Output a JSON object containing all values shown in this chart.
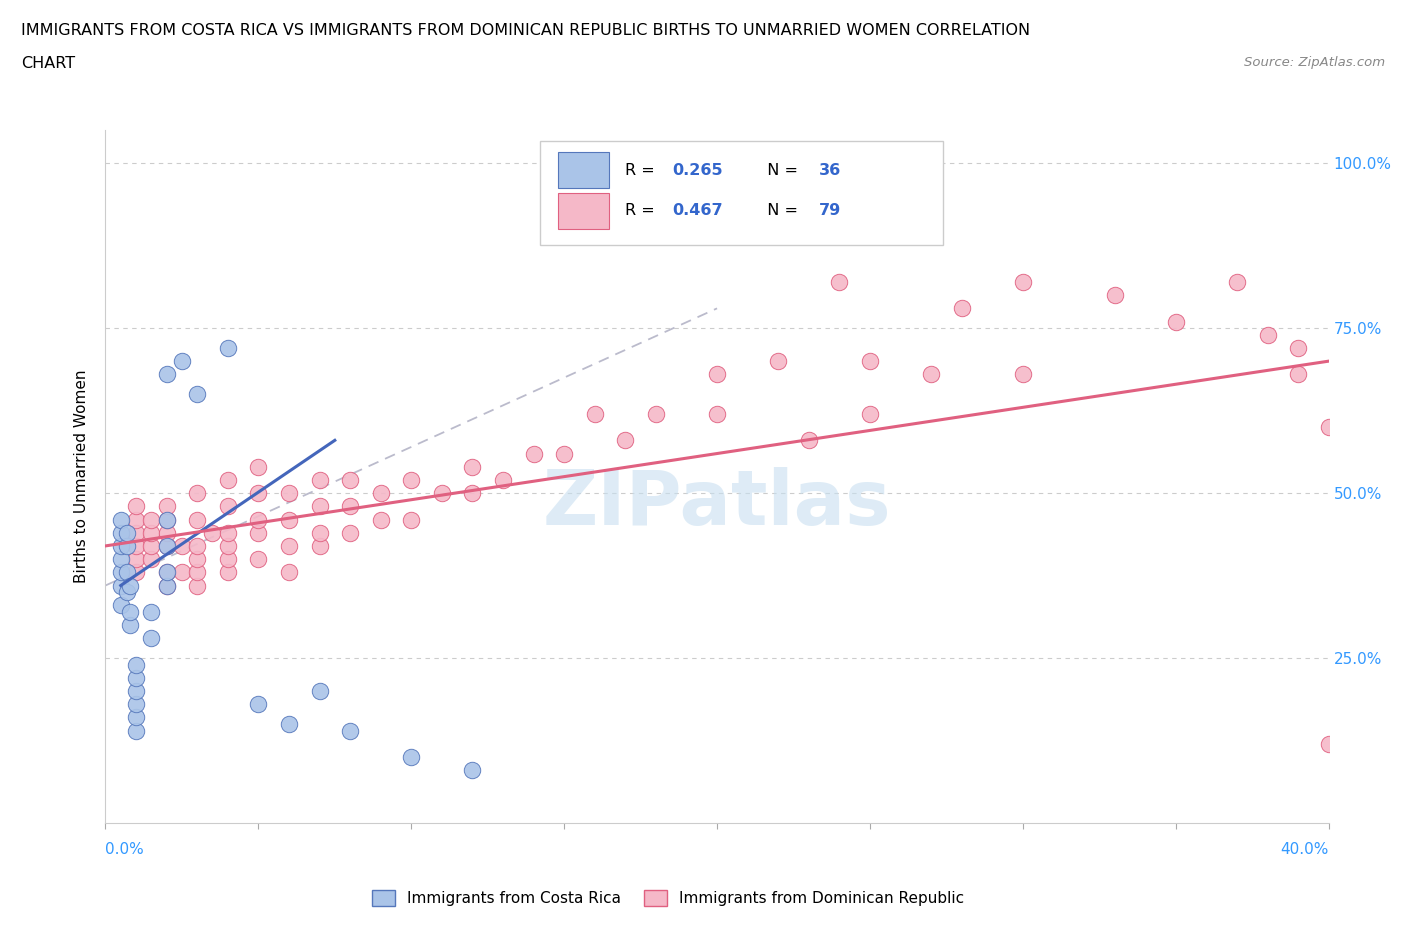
{
  "title_line1": "IMMIGRANTS FROM COSTA RICA VS IMMIGRANTS FROM DOMINICAN REPUBLIC BIRTHS TO UNMARRIED WOMEN CORRELATION",
  "title_line2": "CHART",
  "source": "Source: ZipAtlas.com",
  "legend_label1": "Immigrants from Costa Rica",
  "legend_label2": "Immigrants from Dominican Republic",
  "R1": 0.265,
  "N1": 36,
  "R2": 0.467,
  "N2": 79,
  "color_cr": "#aac4e8",
  "color_dr": "#f5b8c8",
  "color_cr_dark": "#5577bb",
  "color_dr_dark": "#e06080",
  "color_cr_line": "#4466bb",
  "color_dr_line": "#e06080",
  "color_dash": "#bbbbcc",
  "watermark": "ZIPatlas",
  "x_min": 0.0,
  "x_max": 0.4,
  "y_min": 0.0,
  "y_max": 1.05,
  "costa_rica_x": [
    0.005,
    0.005,
    0.005,
    0.005,
    0.005,
    0.005,
    0.005,
    0.007,
    0.007,
    0.007,
    0.007,
    0.008,
    0.008,
    0.008,
    0.01,
    0.01,
    0.01,
    0.01,
    0.01,
    0.01,
    0.015,
    0.015,
    0.02,
    0.02,
    0.02,
    0.02,
    0.02,
    0.025,
    0.03,
    0.04,
    0.05,
    0.06,
    0.07,
    0.08,
    0.1,
    0.12
  ],
  "costa_rica_y": [
    0.33,
    0.36,
    0.38,
    0.4,
    0.42,
    0.44,
    0.46,
    0.35,
    0.38,
    0.42,
    0.44,
    0.3,
    0.32,
    0.36,
    0.14,
    0.16,
    0.18,
    0.2,
    0.22,
    0.24,
    0.28,
    0.32,
    0.36,
    0.38,
    0.42,
    0.46,
    0.68,
    0.7,
    0.65,
    0.72,
    0.18,
    0.15,
    0.2,
    0.14,
    0.1,
    0.08
  ],
  "dominican_x": [
    0.01,
    0.01,
    0.01,
    0.01,
    0.01,
    0.01,
    0.015,
    0.015,
    0.015,
    0.015,
    0.02,
    0.02,
    0.02,
    0.02,
    0.02,
    0.02,
    0.025,
    0.025,
    0.03,
    0.03,
    0.03,
    0.03,
    0.03,
    0.03,
    0.035,
    0.04,
    0.04,
    0.04,
    0.04,
    0.04,
    0.04,
    0.05,
    0.05,
    0.05,
    0.05,
    0.05,
    0.06,
    0.06,
    0.06,
    0.06,
    0.07,
    0.07,
    0.07,
    0.07,
    0.08,
    0.08,
    0.08,
    0.09,
    0.09,
    0.1,
    0.1,
    0.11,
    0.12,
    0.12,
    0.13,
    0.14,
    0.15,
    0.16,
    0.17,
    0.18,
    0.2,
    0.2,
    0.22,
    0.23,
    0.24,
    0.25,
    0.25,
    0.27,
    0.28,
    0.3,
    0.3,
    0.33,
    0.35,
    0.37,
    0.38,
    0.39,
    0.39,
    0.4,
    0.4
  ],
  "dominican_y": [
    0.38,
    0.4,
    0.42,
    0.44,
    0.46,
    0.48,
    0.4,
    0.42,
    0.44,
    0.46,
    0.36,
    0.38,
    0.42,
    0.44,
    0.46,
    0.48,
    0.38,
    0.42,
    0.36,
    0.38,
    0.4,
    0.42,
    0.46,
    0.5,
    0.44,
    0.38,
    0.4,
    0.42,
    0.44,
    0.48,
    0.52,
    0.4,
    0.44,
    0.46,
    0.5,
    0.54,
    0.38,
    0.42,
    0.46,
    0.5,
    0.42,
    0.44,
    0.48,
    0.52,
    0.44,
    0.48,
    0.52,
    0.46,
    0.5,
    0.46,
    0.52,
    0.5,
    0.5,
    0.54,
    0.52,
    0.56,
    0.56,
    0.62,
    0.58,
    0.62,
    0.62,
    0.68,
    0.7,
    0.58,
    0.82,
    0.62,
    0.7,
    0.68,
    0.78,
    0.68,
    0.82,
    0.8,
    0.76,
    0.82,
    0.74,
    0.68,
    0.72,
    0.6,
    0.12
  ],
  "cr_line_x": [
    0.005,
    0.075
  ],
  "cr_line_y": [
    0.36,
    0.58
  ],
  "dr_line_x": [
    0.0,
    0.4
  ],
  "dr_line_y": [
    0.42,
    0.7
  ],
  "dash_line_x": [
    0.0,
    0.2
  ],
  "dash_line_y": [
    0.36,
    0.78
  ]
}
